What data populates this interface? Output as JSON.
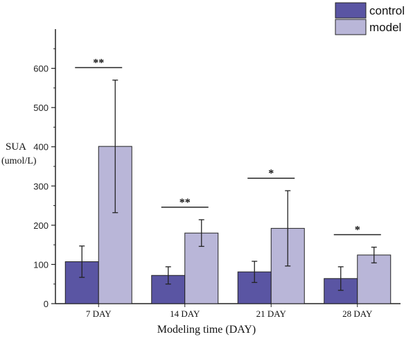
{
  "chart_data": {
    "type": "bar",
    "categories": [
      "7 DAY",
      "14 DAY",
      "21 DAY",
      "28 DAY"
    ],
    "series": [
      {
        "name": "control",
        "color": "#5a55a3",
        "values": [
          107,
          72,
          81,
          64
        ],
        "errors": [
          40,
          22,
          27,
          30
        ]
      },
      {
        "name": "model",
        "color": "#b9b6d8",
        "values": [
          401,
          180,
          192,
          124
        ],
        "errors": [
          169,
          34,
          96,
          20
        ]
      }
    ],
    "significance": [
      "**",
      "**",
      "*",
      "*"
    ],
    "xlabel": "Modeling time (DAY)",
    "ylabel_line1": "SUA",
    "ylabel_line2": "(umol/L)",
    "ylim": [
      0,
      700
    ],
    "yticks": [
      0,
      100,
      200,
      300,
      400,
      500,
      600
    ],
    "legend_position": "top-right"
  }
}
